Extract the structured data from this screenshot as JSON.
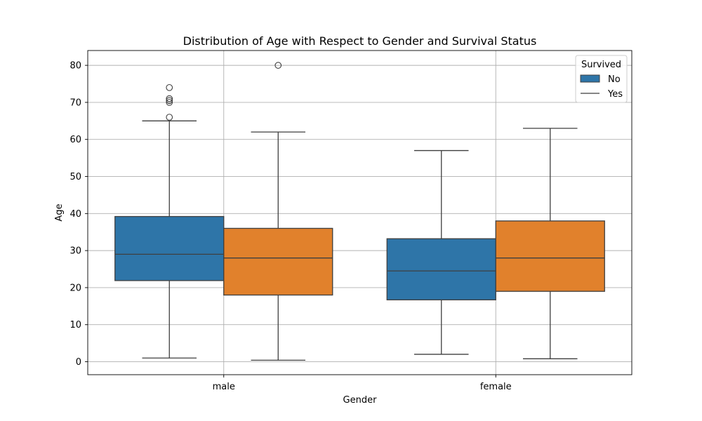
{
  "chart_data": {
    "type": "box",
    "title": "Distribution of Age with Respect to Gender and Survival Status",
    "xlabel": "Gender",
    "ylabel": "Age",
    "categories": [
      "male",
      "female"
    ],
    "ylim": [
      -3.5,
      84
    ],
    "yticks": [
      0,
      10,
      20,
      30,
      40,
      50,
      60,
      70,
      80
    ],
    "grid": true,
    "legend": {
      "title": "Survived",
      "placement": "top-right",
      "entries": [
        "No",
        "Yes"
      ]
    },
    "series": [
      {
        "name": "No",
        "color": "#2e75a8",
        "boxes": [
          {
            "category": "male",
            "whisker_low": 1,
            "q1": 21.9,
            "median": 29,
            "q3": 39.2,
            "whisker_high": 65,
            "outliers": [
              66,
              70,
              70.5,
              71,
              74
            ]
          },
          {
            "category": "female",
            "whisker_low": 2,
            "q1": 16.7,
            "median": 24.5,
            "q3": 33.2,
            "whisker_high": 57,
            "outliers": []
          }
        ]
      },
      {
        "name": "Yes",
        "color": "#e1812c",
        "boxes": [
          {
            "category": "male",
            "whisker_low": 0.4,
            "q1": 18,
            "median": 28,
            "q3": 36,
            "whisker_high": 62,
            "outliers": [
              80
            ]
          },
          {
            "category": "female",
            "whisker_low": 0.8,
            "q1": 19,
            "median": 28,
            "q3": 38,
            "whisker_high": 63,
            "outliers": []
          }
        ]
      }
    ]
  }
}
